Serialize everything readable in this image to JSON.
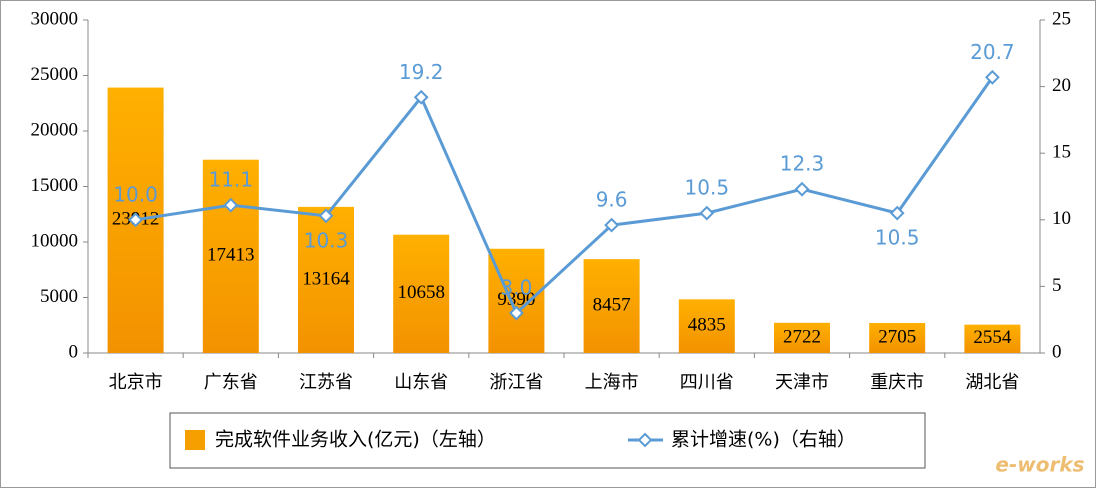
{
  "chart_data": {
    "type": "combo",
    "categories": [
      "北京市",
      "广东省",
      "江苏省",
      "山东省",
      "浙江省",
      "上海市",
      "四川省",
      "天津市",
      "重庆市",
      "湖北省"
    ],
    "series": [
      {
        "name": "完成软件业务收入(亿元)（左轴）",
        "type": "bar",
        "color": "#f5a000",
        "values": [
          23912,
          17413,
          13164,
          10658,
          9390,
          8457,
          4835,
          2722,
          2705,
          2554
        ]
      },
      {
        "name": "累计增速(%)（右轴）",
        "type": "line",
        "axis": "y2",
        "color": "#5b9bd5",
        "values": [
          10.0,
          11.1,
          10.3,
          19.2,
          3.0,
          9.6,
          10.5,
          12.3,
          10.5,
          20.7
        ],
        "value_labels": [
          "10.0",
          "11.1",
          "10.3",
          "19.2",
          "3.0",
          "9.6",
          "10.5",
          "12.3",
          "10.5",
          "20.7"
        ]
      }
    ],
    "ylim": [
      0,
      30000
    ],
    "yticks": [
      0,
      5000,
      10000,
      15000,
      20000,
      25000,
      30000
    ],
    "y2lim": [
      0,
      25
    ],
    "y2ticks": [
      0,
      5,
      10,
      15,
      20,
      25
    ],
    "grid": false,
    "legend": "bottom"
  },
  "watermark": "e-works"
}
